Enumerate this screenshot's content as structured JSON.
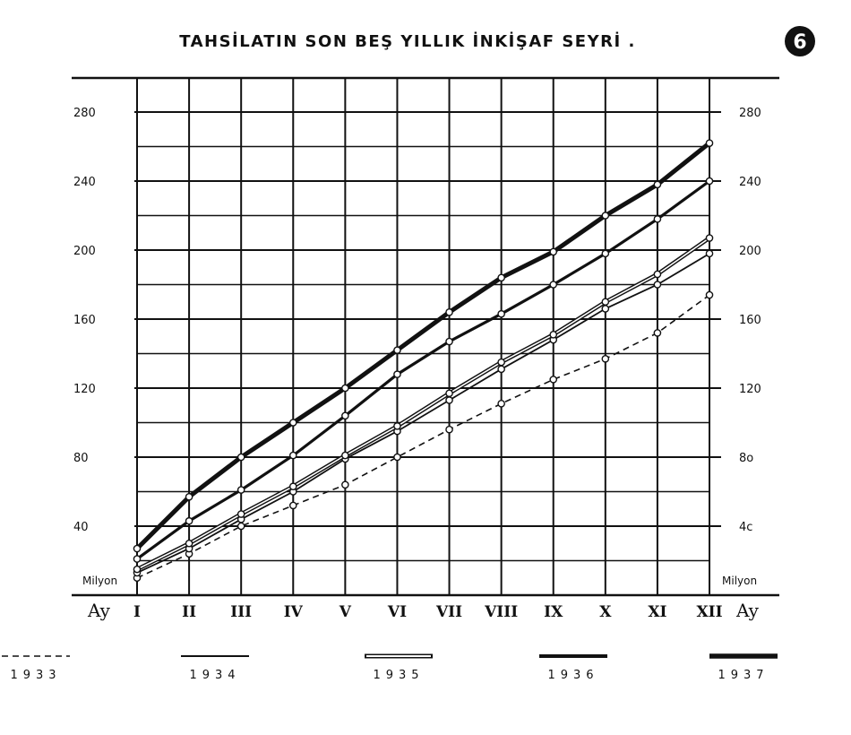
{
  "chart_data": {
    "type": "line",
    "title": "TAHSİLATIN SON BEŞ YILLIK İNKİŞAF SEYRİ .",
    "badge": "6",
    "categories": [
      "I",
      "II",
      "III",
      "IV",
      "V",
      "VI",
      "VII",
      "VIII",
      "IX",
      "X",
      "XI",
      "XII"
    ],
    "xlabel_left": "Ay",
    "xlabel_right": "Ay",
    "unit_left": "Milyon",
    "unit_right": "Milyon",
    "ylim": [
      0,
      280
    ],
    "yticks_left": [
      "40",
      "80",
      "120",
      "160",
      "200",
      "240",
      "280"
    ],
    "yticks_right": [
      "4c",
      "8o",
      "120",
      "160",
      "200",
      "240",
      "280"
    ],
    "ytick_values": [
      40,
      80,
      120,
      160,
      200,
      240,
      280
    ],
    "grid": true,
    "legend_position": "bottom",
    "series": [
      {
        "name": "1933",
        "style": "dashed",
        "values": [
          10,
          24,
          40,
          52,
          64,
          80,
          96,
          111,
          125,
          137,
          152,
          174
        ]
      },
      {
        "name": "1934",
        "style": "thin",
        "values": [
          13,
          27,
          44,
          60,
          79,
          95,
          113,
          131,
          148,
          166,
          180,
          198
        ]
      },
      {
        "name": "1935",
        "style": "double",
        "values": [
          15,
          30,
          47,
          63,
          81,
          98,
          117,
          135,
          151,
          170,
          186,
          207
        ]
      },
      {
        "name": "1936",
        "style": "medium",
        "values": [
          21,
          43,
          61,
          81,
          104,
          128,
          147,
          163,
          180,
          198,
          218,
          240
        ]
      },
      {
        "name": "1937",
        "style": "thick",
        "values": [
          27,
          57,
          80,
          100,
          120,
          142,
          164,
          184,
          199,
          220,
          238,
          262
        ]
      }
    ]
  }
}
